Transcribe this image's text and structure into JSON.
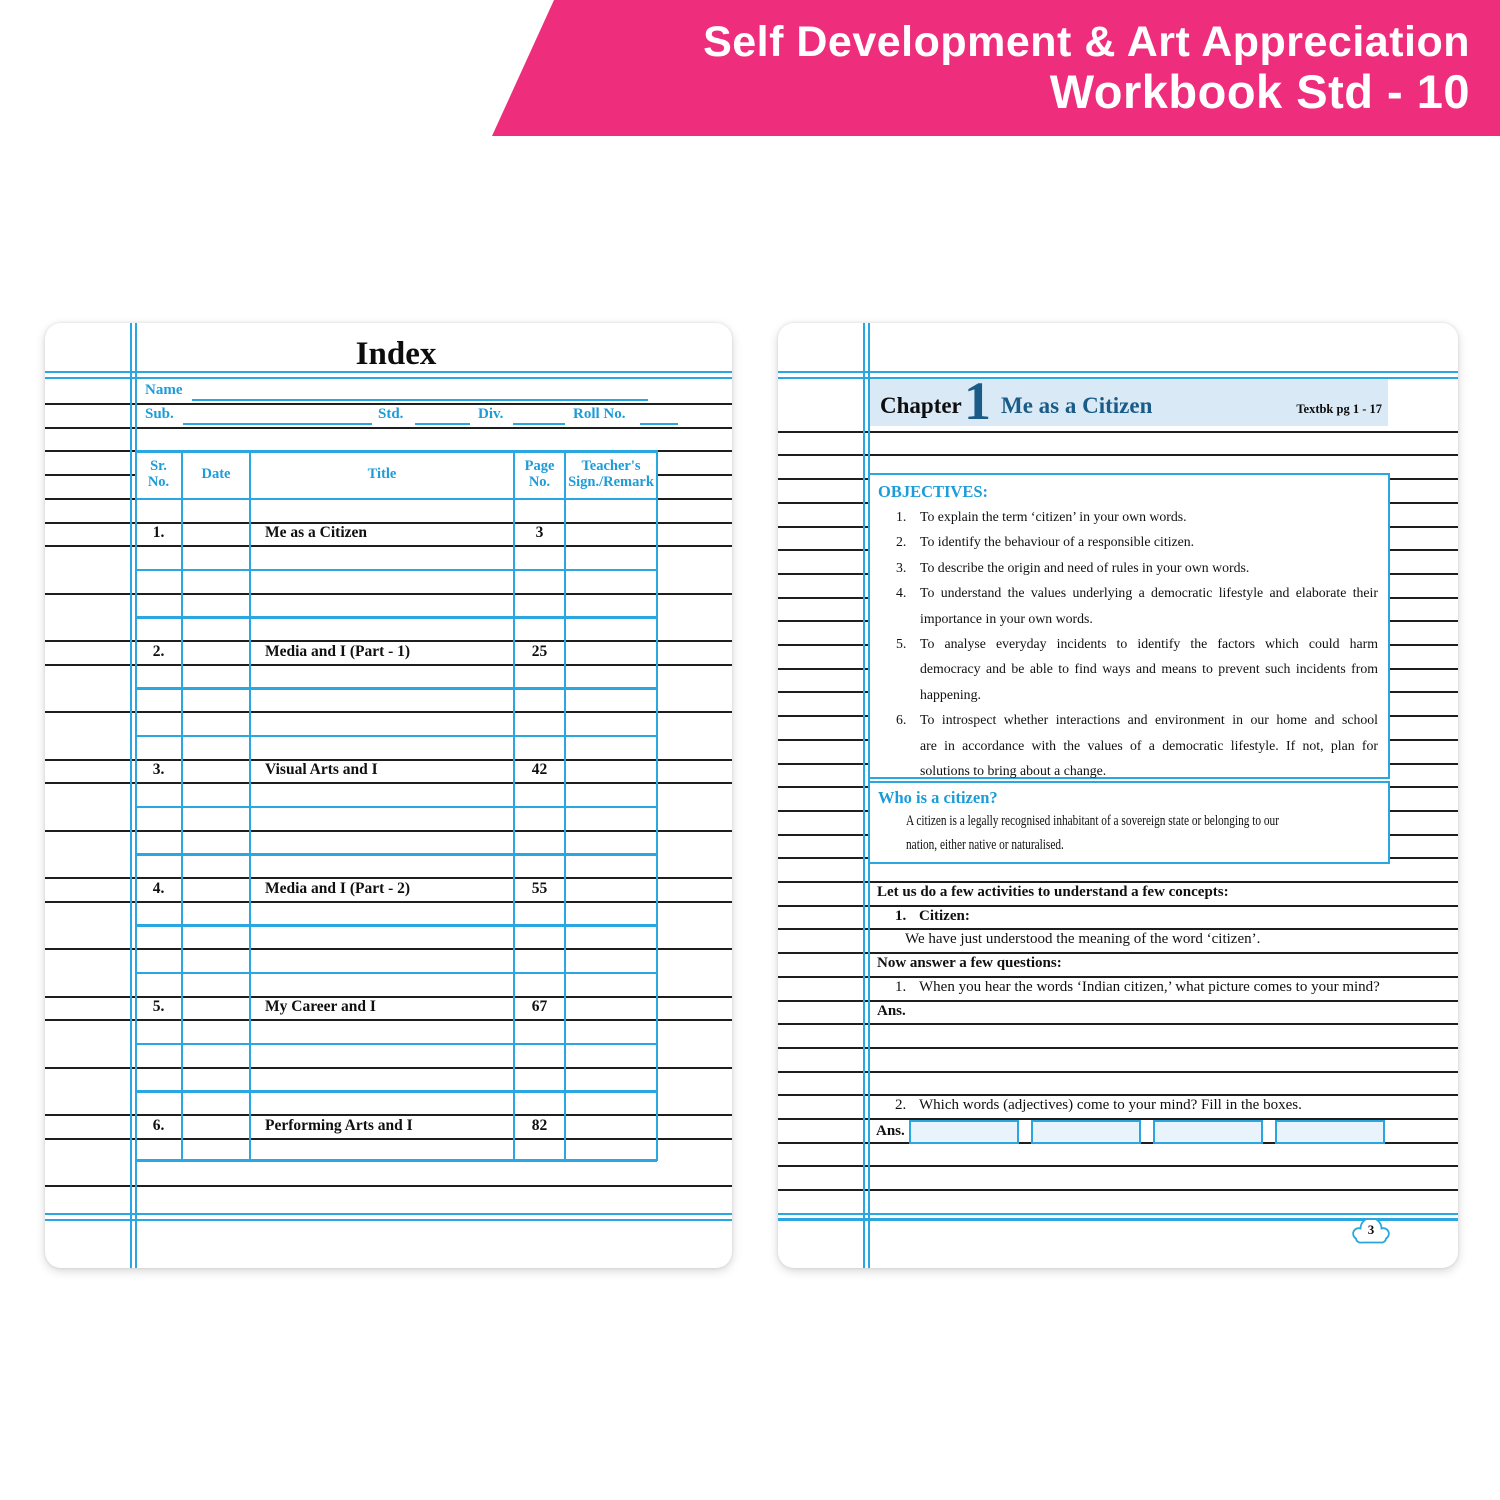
{
  "banner": {
    "line1": "Self Development & Art Appreciation",
    "line2": "Workbook Std - 10"
  },
  "colors": {
    "pink": "#EE2E7C",
    "line_blue": "#2AA7E0",
    "label_blue": "#1C9CD9",
    "dark_blue": "#1A5C87",
    "band_bg": "#D9EAF6",
    "answer_box_fill": "#E9F3FB"
  },
  "index_page": {
    "title": "Index",
    "fields": {
      "name_label": "Name",
      "sub_label": "Sub.",
      "std_label": "Std.",
      "div_label": "Div.",
      "roll_label": "Roll No."
    },
    "table": {
      "headers": [
        {
          "l1": "Sr.",
          "l2": "No."
        },
        {
          "l1": "Date",
          "l2": ""
        },
        {
          "l1": "Title",
          "l2": ""
        },
        {
          "l1": "Page",
          "l2": "No."
        },
        {
          "l1": "Teacher's",
          "l2": "Sign./Remark"
        }
      ],
      "rows": [
        {
          "sr": "1.",
          "date": "",
          "title": "Me as a Citizen",
          "page": "3",
          "remark": ""
        },
        {
          "sr": "2.",
          "date": "",
          "title": "Media and I (Part - 1)",
          "page": "25",
          "remark": ""
        },
        {
          "sr": "3.",
          "date": "",
          "title": "Visual Arts and I",
          "page": "42",
          "remark": ""
        },
        {
          "sr": "4.",
          "date": "",
          "title": "Media and I (Part - 2)",
          "page": "55",
          "remark": ""
        },
        {
          "sr": "5.",
          "date": "",
          "title": "My Career and I",
          "page": "67",
          "remark": ""
        },
        {
          "sr": "6.",
          "date": "",
          "title": "Performing Arts and I",
          "page": "82",
          "remark": ""
        }
      ]
    }
  },
  "chapter_page": {
    "chapter_label": "Chapter",
    "chapter_number": "1",
    "chapter_title": "Me as a Citizen",
    "textbook_ref": "Textbk pg 1 - 17",
    "objectives": {
      "heading": "OBJECTIVES:",
      "lines": [
        {
          "num": "1.",
          "text": "To explain the term ‘citizen’ in your own words.",
          "justify": false
        },
        {
          "num": "2.",
          "text": "To identify the behaviour of a responsible citizen.",
          "justify": false
        },
        {
          "num": "3.",
          "text": "To describe the origin and need of rules in your own words.",
          "justify": false
        },
        {
          "num": "4.",
          "text": "To understand the values underlying a democratic lifestyle and elaborate their",
          "justify": true
        },
        {
          "num": "",
          "text": "importance in your own words.",
          "justify": false
        },
        {
          "num": "5.",
          "text": "To analyse everyday incidents to identify the factors which could harm",
          "justify": true
        },
        {
          "num": "",
          "text": "democracy and be able to find ways and means to prevent such incidents from",
          "justify": true
        },
        {
          "num": "",
          "text": "happening.",
          "justify": false
        },
        {
          "num": "6.",
          "text": "To introspect whether interactions and environment in our home and school",
          "justify": true
        },
        {
          "num": "",
          "text": "are in accordance with the values of a democratic lifestyle. If not, plan for",
          "justify": true
        },
        {
          "num": "",
          "text": "solutions to bring about a change.",
          "justify": false
        }
      ]
    },
    "who": {
      "heading": "Who is a citizen?",
      "line1": "A citizen is a legally recognised inhabitant of a sovereign state or belonging to our",
      "line2": "nation, either native or naturalised."
    },
    "activities": {
      "intro": "Let us do a few activities to understand a few concepts:",
      "item1_num": "1.",
      "item1_label": "Citizen:",
      "item1_text": "We have just understood the meaning of the word ‘citizen’.",
      "questions_header": "Now answer a few questions:",
      "q1_num": "1.",
      "q1_text": "When you hear the words ‘Indian citizen,’ what picture comes to your mind?",
      "ans1_label": "Ans.",
      "q2_num": "2.",
      "q2_text": "Which words (adjectives) come to your mind? Fill in the boxes.",
      "ans2_label": "Ans.",
      "answer_box_count": 4
    },
    "page_number": "3"
  }
}
